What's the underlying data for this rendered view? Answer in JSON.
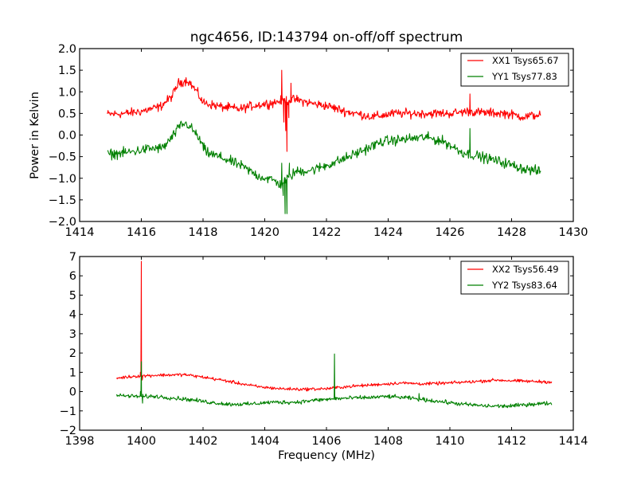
{
  "chart_data": [
    {
      "type": "line",
      "title": "ngc4656, ID:143794 on-off/off spectrum",
      "xlabel": "",
      "ylabel": "Power in Kelvin",
      "xlim": [
        1414,
        1430
      ],
      "ylim": [
        -2.0,
        2.0
      ],
      "xticks": [
        "1414",
        "1416",
        "1418",
        "1420",
        "1422",
        "1424",
        "1426",
        "1428",
        "1430"
      ],
      "yticks": [
        "2.0",
        "1.5",
        "1.0",
        "0.5",
        "0.0",
        "−0.5",
        "−1.0",
        "−1.5",
        "−2.0"
      ],
      "xtick_values": [
        1414,
        1416,
        1418,
        1420,
        1422,
        1424,
        1426,
        1428,
        1430
      ],
      "ytick_values": [
        2.0,
        1.5,
        1.0,
        0.5,
        0.0,
        -0.5,
        -1.0,
        -1.5,
        -2.0
      ],
      "legend_position": "top-right",
      "grid": false,
      "series": [
        {
          "name": "XX1 Tsys65.67",
          "color": "#ff0000",
          "noise": 0.09,
          "x_range": [
            1414.9,
            1428.95
          ],
          "baseline": [
            [
              1414.9,
              0.48
            ],
            [
              1415.5,
              0.5
            ],
            [
              1416.0,
              0.55
            ],
            [
              1416.6,
              0.65
            ],
            [
              1417.0,
              0.9
            ],
            [
              1417.2,
              1.2
            ],
            [
              1417.5,
              1.27
            ],
            [
              1417.8,
              1.0
            ],
            [
              1418.0,
              0.75
            ],
            [
              1418.6,
              0.65
            ],
            [
              1419.2,
              0.6
            ],
            [
              1419.6,
              0.68
            ],
            [
              1420.3,
              0.75
            ],
            [
              1420.55,
              0.8
            ],
            [
              1421.0,
              0.82
            ],
            [
              1421.6,
              0.72
            ],
            [
              1422.0,
              0.68
            ],
            [
              1422.6,
              0.55
            ],
            [
              1423.5,
              0.42
            ],
            [
              1424.2,
              0.5
            ],
            [
              1425.0,
              0.5
            ],
            [
              1426.0,
              0.5
            ],
            [
              1426.6,
              0.55
            ],
            [
              1427.0,
              0.52
            ],
            [
              1427.8,
              0.5
            ],
            [
              1428.4,
              0.42
            ],
            [
              1428.95,
              0.48
            ]
          ],
          "features": [
            [
              1420.55,
              1.5
            ],
            [
              1420.62,
              0.3
            ],
            [
              1420.68,
              0.1
            ],
            [
              1420.72,
              -0.38
            ],
            [
              1420.78,
              0.4
            ],
            [
              1420.85,
              1.2
            ],
            [
              1426.65,
              0.95
            ]
          ]
        },
        {
          "name": "YY1 Tsys77.83",
          "color": "#008000",
          "noise": 0.1,
          "x_range": [
            1414.9,
            1428.95
          ],
          "baseline": [
            [
              1414.9,
              -0.45
            ],
            [
              1415.6,
              -0.4
            ],
            [
              1416.2,
              -0.32
            ],
            [
              1416.7,
              -0.3
            ],
            [
              1417.0,
              -0.05
            ],
            [
              1417.3,
              0.25
            ],
            [
              1417.5,
              0.25
            ],
            [
              1417.8,
              0.0
            ],
            [
              1418.1,
              -0.4
            ],
            [
              1418.7,
              -0.55
            ],
            [
              1419.2,
              -0.7
            ],
            [
              1419.8,
              -0.95
            ],
            [
              1420.3,
              -1.05
            ],
            [
              1420.5,
              -1.15
            ],
            [
              1421.0,
              -0.85
            ],
            [
              1421.6,
              -0.8
            ],
            [
              1422.4,
              -0.6
            ],
            [
              1423.2,
              -0.35
            ],
            [
              1423.8,
              -0.15
            ],
            [
              1424.5,
              -0.1
            ],
            [
              1425.2,
              -0.05
            ],
            [
              1425.8,
              -0.15
            ],
            [
              1426.4,
              -0.4
            ],
            [
              1427.0,
              -0.5
            ],
            [
              1427.8,
              -0.65
            ],
            [
              1428.4,
              -0.78
            ],
            [
              1428.95,
              -0.85
            ]
          ],
          "features": [
            [
              1420.55,
              -0.65
            ],
            [
              1420.6,
              -1.4
            ],
            [
              1420.66,
              -1.82
            ],
            [
              1420.72,
              -1.82
            ],
            [
              1420.8,
              -0.65
            ],
            [
              1426.65,
              0.15
            ]
          ]
        }
      ]
    },
    {
      "type": "line",
      "title": "",
      "xlabel": "Frequency (MHz)",
      "ylabel": "",
      "xlim": [
        1398,
        1414
      ],
      "ylim": [
        -2,
        7
      ],
      "xticks": [
        "1398",
        "1400",
        "1402",
        "1404",
        "1406",
        "1408",
        "1410",
        "1412",
        "1414"
      ],
      "yticks": [
        "7",
        "6",
        "5",
        "4",
        "3",
        "2",
        "1",
        "0",
        "−1",
        "−2"
      ],
      "xtick_values": [
        1398,
        1400,
        1402,
        1404,
        1406,
        1408,
        1410,
        1412,
        1414
      ],
      "ytick_values": [
        7,
        6,
        5,
        4,
        3,
        2,
        1,
        0,
        -1,
        -2
      ],
      "legend_position": "top-right",
      "grid": false,
      "series": [
        {
          "name": "XX2 Tsys56.49",
          "color": "#ff0000",
          "noise": 0.07,
          "x_range": [
            1399.2,
            1413.3
          ],
          "baseline": [
            [
              1399.2,
              0.7
            ],
            [
              1399.8,
              0.8
            ],
            [
              1400.5,
              0.85
            ],
            [
              1401.4,
              0.88
            ],
            [
              1402.0,
              0.75
            ],
            [
              1402.6,
              0.6
            ],
            [
              1403.2,
              0.42
            ],
            [
              1403.8,
              0.25
            ],
            [
              1404.5,
              0.15
            ],
            [
              1405.2,
              0.12
            ],
            [
              1406.0,
              0.15
            ],
            [
              1406.6,
              0.25
            ],
            [
              1407.5,
              0.35
            ],
            [
              1408.4,
              0.45
            ],
            [
              1409.2,
              0.4
            ],
            [
              1410.0,
              0.45
            ],
            [
              1410.8,
              0.52
            ],
            [
              1411.5,
              0.6
            ],
            [
              1412.2,
              0.55
            ],
            [
              1413.3,
              0.5
            ]
          ],
          "features": [
            [
              1399.97,
              1.0
            ],
            [
              1400.0,
              6.75
            ],
            [
              1400.03,
              0.6
            ],
            [
              1406.3,
              0.2
            ]
          ]
        },
        {
          "name": "YY2 Tsys83.64",
          "color": "#008000",
          "noise": 0.09,
          "x_range": [
            1399.2,
            1413.3
          ],
          "baseline": [
            [
              1399.2,
              -0.2
            ],
            [
              1399.9,
              -0.25
            ],
            [
              1400.5,
              -0.25
            ],
            [
              1401.5,
              -0.4
            ],
            [
              1402.2,
              -0.55
            ],
            [
              1402.8,
              -0.65
            ],
            [
              1403.5,
              -0.65
            ],
            [
              1404.2,
              -0.55
            ],
            [
              1405.0,
              -0.55
            ],
            [
              1405.6,
              -0.45
            ],
            [
              1406.5,
              -0.35
            ],
            [
              1407.5,
              -0.3
            ],
            [
              1408.0,
              -0.25
            ],
            [
              1408.8,
              -0.35
            ],
            [
              1409.6,
              -0.5
            ],
            [
              1410.4,
              -0.65
            ],
            [
              1411.2,
              -0.75
            ],
            [
              1412.0,
              -0.75
            ],
            [
              1412.6,
              -0.65
            ],
            [
              1413.3,
              -0.6
            ]
          ],
          "features": [
            [
              1399.97,
              0.0
            ],
            [
              1400.0,
              1.55
            ],
            [
              1400.04,
              -0.6
            ],
            [
              1406.22,
              -0.4
            ],
            [
              1406.26,
              1.95
            ],
            [
              1406.3,
              -0.3
            ],
            [
              1409.0,
              -0.1
            ]
          ]
        }
      ]
    }
  ]
}
